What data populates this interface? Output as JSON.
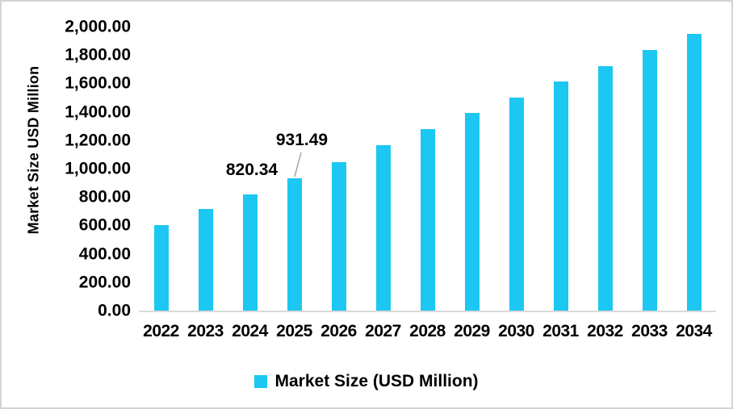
{
  "chart_data": {
    "type": "bar",
    "title": "",
    "categories": [
      "2022",
      "2023",
      "2024",
      "2025",
      "2026",
      "2027",
      "2028",
      "2029",
      "2030",
      "2031",
      "2032",
      "2033",
      "2034"
    ],
    "values": [
      602,
      715,
      820.34,
      931.49,
      1045,
      1165,
      1278,
      1390,
      1500,
      1612,
      1724,
      1837,
      1950
    ],
    "xlabel": "",
    "ylabel": "Market Size USD Million",
    "ylim": [
      0,
      2000
    ],
    "ytick_step": 200,
    "y_tick_labels": [
      "0.00",
      "200.00",
      "400.00",
      "600.00",
      "800.00",
      "1,000.00",
      "1,200.00",
      "1,400.00",
      "1,600.00",
      "1,800.00",
      "2,000.00"
    ],
    "grid": false,
    "legend_position": "bottom",
    "legend": [
      "Market Size (USD Million)"
    ],
    "bar_color": "#1cc7f2",
    "axis_line_color": "#d9d9d9",
    "leader_line_color": "#a6a6a6",
    "data_labels": [
      {
        "category": "2024",
        "text": "820.34",
        "leader_line": false
      },
      {
        "category": "2025",
        "text": "931.49",
        "leader_line": true
      }
    ]
  }
}
